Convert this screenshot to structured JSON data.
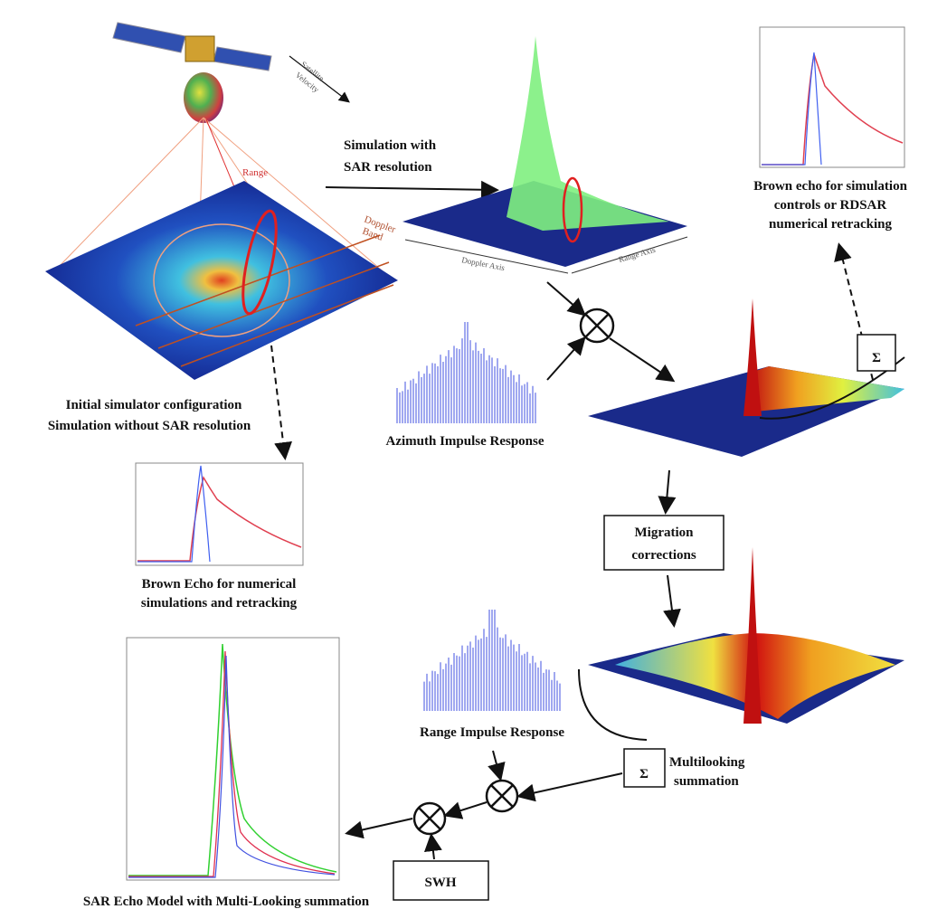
{
  "satellite_velocity": [
    "Satellite",
    "Velocity"
  ],
  "range": "Range",
  "doppler_band": [
    "Doppler",
    "Band"
  ],
  "simulation_with_sar": [
    "Simulation with",
    "SAR resolution"
  ],
  "doppler_axis": "Doppler Axis",
  "range_axis": "Range Axis",
  "brown_echo_rdsar": [
    "Brown echo for simulation",
    "controls or RDSAR",
    "numerical retracking"
  ],
  "initial_config": [
    "Initial simulator configuration",
    "Simulation without SAR resolution"
  ],
  "azimuth_impulse": "Azimuth Impulse Response",
  "brown_echo_numerical": [
    "Brown Echo for numerical",
    "simulations and retracking"
  ],
  "migration": [
    "Migration",
    "corrections"
  ],
  "range_impulse": "Range Impulse Response",
  "sigma_top": "Σ",
  "sigma_bottom": "Σ",
  "multilooking": [
    "Multilooking",
    "summation"
  ],
  "swh": "SWH",
  "sar_echo_model": "SAR Echo Model with Multi-Looking summation"
}
